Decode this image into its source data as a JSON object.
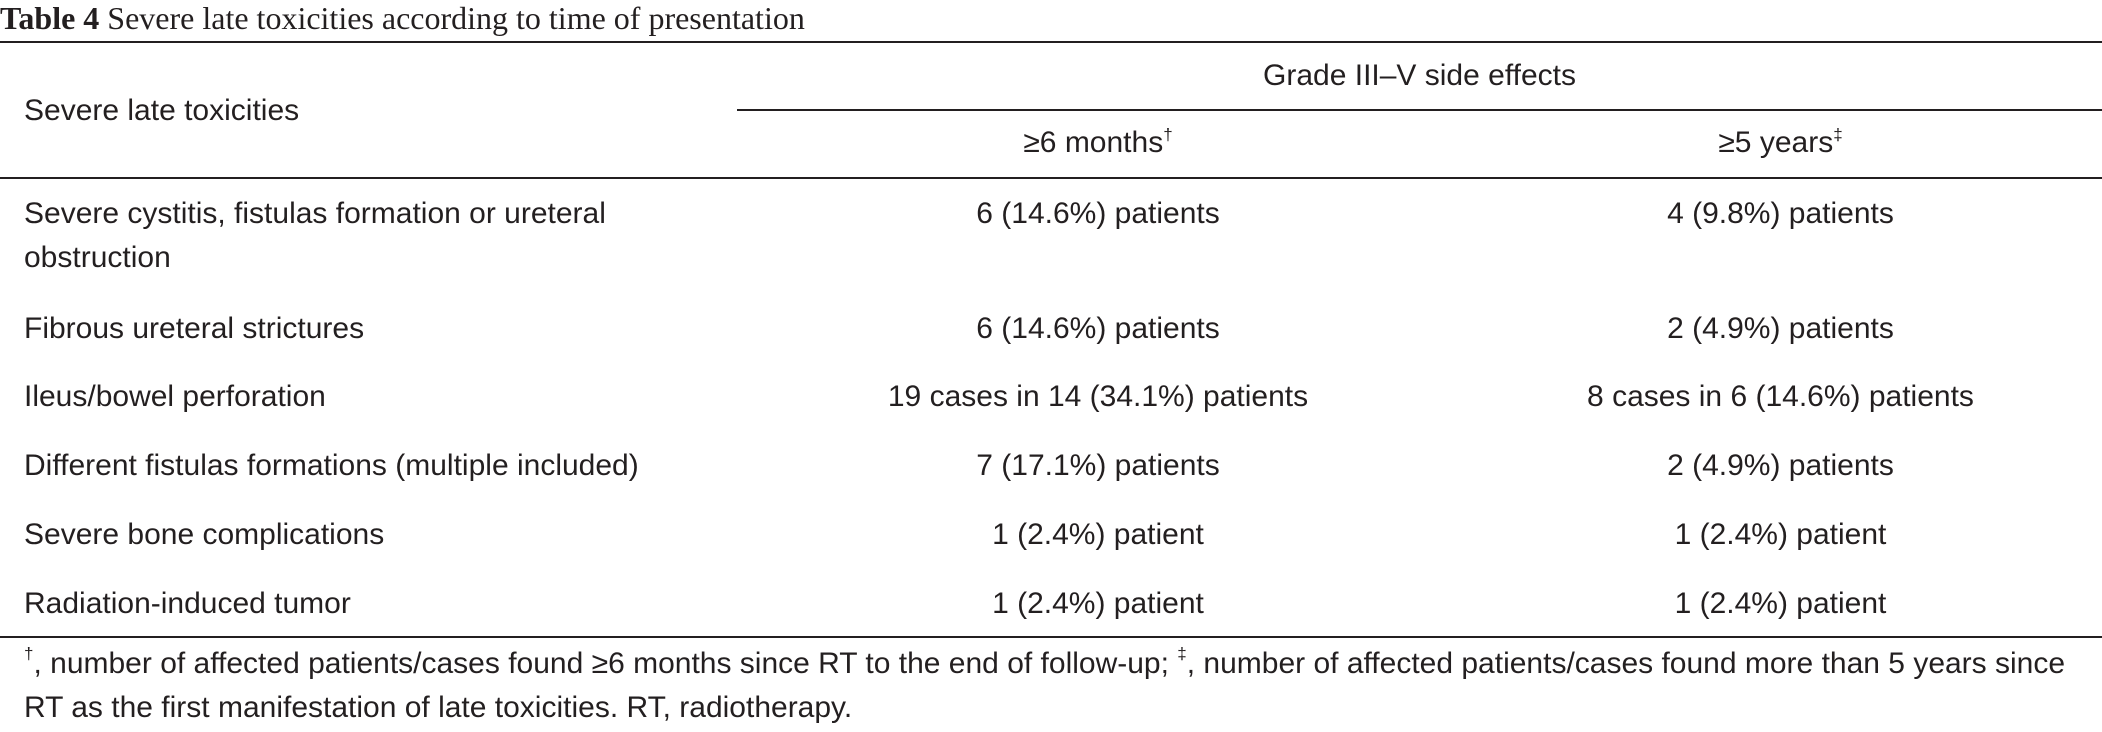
{
  "caption": {
    "label": "Table 4",
    "text": " Severe late toxicities according to time of presentation"
  },
  "header": {
    "row_label": "Severe late toxicities",
    "group_label": "Grade III–V side effects",
    "col1": {
      "label": "≥6 months",
      "mark": "†"
    },
    "col2": {
      "label": "≥5 years",
      "mark": "‡"
    }
  },
  "rows": [
    {
      "label_line1": "Severe cystitis, fistulas formation or ureteral",
      "label_line2": "obstruction",
      "col1": "6 (14.6%) patients",
      "col2": "4 (9.8%) patients"
    },
    {
      "label_line1": "Fibrous ureteral strictures",
      "col1": "6 (14.6%) patients",
      "col2": "2 (4.9%) patients"
    },
    {
      "label_line1": "Ileus/bowel perforation",
      "col1": "19 cases in 14 (34.1%) patients",
      "col2": "8 cases in 6 (14.6%) patients"
    },
    {
      "label_line1": "Different fistulas formations (multiple included)",
      "col1": "7 (17.1%) patients",
      "col2": "2 (4.9%) patients"
    },
    {
      "label_line1": "Severe bone complications",
      "col1": "1 (2.4%) patient",
      "col2": "1 (2.4%) patient"
    },
    {
      "label_line1": "Radiation-induced tumor",
      "col1": "1 (2.4%) patient",
      "col2": "1 (2.4%) patient"
    }
  ],
  "footnote": {
    "mark1": "†",
    "text1": ", number of affected patients/cases found ≥6 months since RT to the end of follow-up; ",
    "mark2": "‡",
    "text2": ", number of affected patients/cases found more than 5 years since RT as the first manifestation of late toxicities. RT, radiotherapy."
  }
}
